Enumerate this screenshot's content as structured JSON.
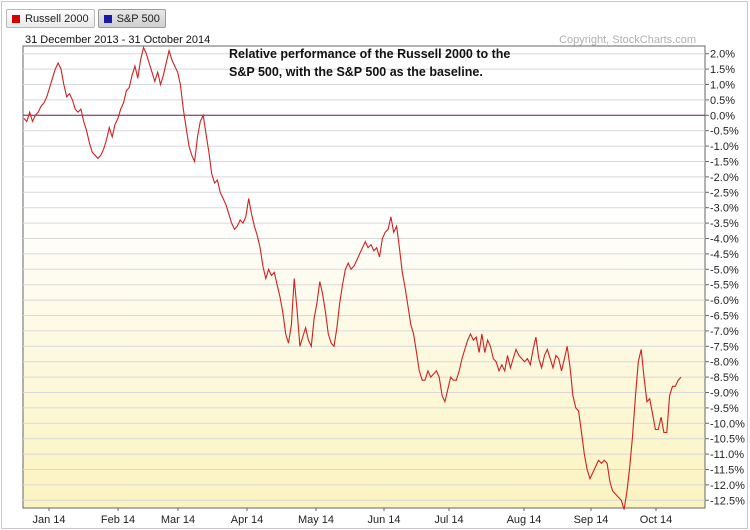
{
  "legend": [
    {
      "label": "Russell 2000",
      "color": "#d40000"
    },
    {
      "label": "S&P 500",
      "color": "#1a1aa8"
    }
  ],
  "date_range": "31 December 2013 - 31 October 2014",
  "copyright": "Copyright, StockCharts.com",
  "annotation": [
    "Relative performance of the Russell 2000 to the",
    "S&P 500, with the S&P 500 as the baseline."
  ],
  "colors": {
    "line": "#cc2222",
    "baseline": "#7a1f5c",
    "fill_top": "#ffffff",
    "fill_bottom": "#fbf3bf",
    "grid": "#d8d8d8"
  },
  "chart_data": {
    "type": "line",
    "ylim": [
      -12.75,
      2.25
    ],
    "y_ticks": [
      "2.0%",
      "1.5%",
      "1.0%",
      "0.5%",
      "0.0%",
      "-0.5%",
      "-1.0%",
      "-1.5%",
      "-2.0%",
      "-2.5%",
      "-3.0%",
      "-3.5%",
      "-4.0%",
      "-4.5%",
      "-5.0%",
      "-5.5%",
      "-6.0%",
      "-6.5%",
      "-7.0%",
      "-7.5%",
      "-8.0%",
      "-8.5%",
      "-9.0%",
      "-9.5%",
      "-10.0%",
      "-10.5%",
      "-11.0%",
      "-11.5%",
      "-12.0%",
      "-12.5%"
    ],
    "x_ticks": [
      "Jan 14",
      "Feb 14",
      "Mar 14",
      "Apr 14",
      "May 14",
      "Jun 14",
      "Jul 14",
      "Aug 14",
      "Sep 14",
      "Oct 14"
    ],
    "baseline": 0,
    "series": [
      {
        "name": "Russell 2000",
        "values": [
          -0.1,
          -0.2,
          0.1,
          -0.2,
          0.0,
          0.1,
          0.3,
          0.4,
          0.6,
          0.9,
          1.2,
          1.5,
          1.7,
          1.5,
          1.0,
          0.6,
          0.7,
          0.5,
          0.2,
          0.1,
          0.2,
          -0.2,
          -0.5,
          -0.9,
          -1.2,
          -1.3,
          -1.4,
          -1.3,
          -1.1,
          -0.8,
          -0.4,
          -0.7,
          -0.3,
          -0.1,
          0.2,
          0.4,
          0.8,
          0.9,
          1.3,
          1.6,
          1.2,
          1.8,
          2.2,
          2.0,
          1.7,
          1.4,
          1.1,
          1.4,
          1.0,
          1.3,
          1.7,
          2.1,
          1.8,
          1.6,
          1.4,
          1.0,
          0.2,
          -0.4,
          -1.0,
          -1.3,
          -1.5,
          -0.7,
          -0.2,
          0.0,
          -0.6,
          -1.2,
          -1.9,
          -2.2,
          -2.1,
          -2.5,
          -2.7,
          -2.9,
          -3.2,
          -3.5,
          -3.7,
          -3.6,
          -3.4,
          -3.5,
          -3.3,
          -2.7,
          -3.2,
          -3.6,
          -3.9,
          -4.3,
          -4.9,
          -5.3,
          -5.0,
          -5.2,
          -5.1,
          -5.5,
          -5.9,
          -6.4,
          -7.1,
          -7.4,
          -6.8,
          -5.3,
          -6.3,
          -7.5,
          -7.2,
          -6.9,
          -7.3,
          -7.5,
          -6.6,
          -6.1,
          -5.4,
          -5.8,
          -6.4,
          -7.1,
          -7.4,
          -7.5,
          -6.9,
          -6.1,
          -5.5,
          -5.0,
          -4.8,
          -5.0,
          -4.9,
          -4.7,
          -4.5,
          -4.3,
          -4.1,
          -4.3,
          -4.2,
          -4.4,
          -4.3,
          -4.6,
          -4.0,
          -3.8,
          -3.7,
          -3.3,
          -3.8,
          -3.6,
          -4.3,
          -5.1,
          -5.6,
          -6.2,
          -6.8,
          -7.1,
          -7.7,
          -8.3,
          -8.6,
          -8.6,
          -8.3,
          -8.5,
          -8.4,
          -8.3,
          -8.5,
          -9.1,
          -9.3,
          -8.9,
          -8.5,
          -8.6,
          -8.6,
          -8.3,
          -7.9,
          -7.6,
          -7.3,
          -7.1,
          -7.3,
          -7.2,
          -7.7,
          -7.1,
          -7.7,
          -7.3,
          -7.5,
          -7.9,
          -8.0,
          -8.3,
          -8.1,
          -8.3,
          -7.8,
          -8.2,
          -7.9,
          -7.6,
          -7.8,
          -7.9,
          -8.0,
          -7.9,
          -8.1,
          -7.6,
          -7.2,
          -7.9,
          -8.2,
          -7.8,
          -7.6,
          -7.9,
          -8.2,
          -7.8,
          -7.9,
          -8.3,
          -7.9,
          -7.5,
          -8.2,
          -9.1,
          -9.5,
          -9.6,
          -10.3,
          -11.0,
          -11.5,
          -11.8,
          -11.6,
          -11.4,
          -11.2,
          -11.3,
          -11.2,
          -11.3,
          -11.9,
          -12.2,
          -12.3,
          -12.4,
          -12.5,
          -12.8,
          -12.2,
          -11.4,
          -10.4,
          -9.1,
          -8.0,
          -7.6,
          -8.5,
          -9.3,
          -9.2,
          -9.7,
          -10.2,
          -10.2,
          -9.8,
          -10.3,
          -10.3,
          -9.1,
          -8.8,
          -8.8,
          -8.6,
          -8.5
        ]
      }
    ]
  }
}
